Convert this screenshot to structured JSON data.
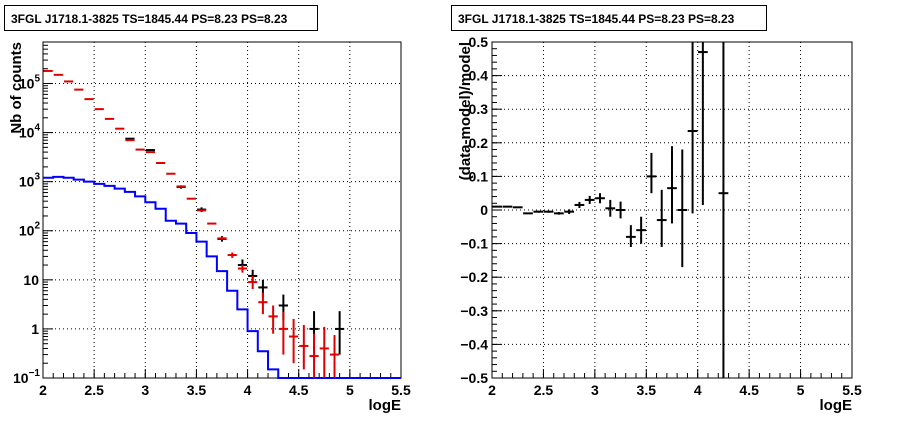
{
  "chart_data": [
    {
      "type": "histogram",
      "title": "3FGL J1718.1-3825 TS=1845.44 PS=8.23 PS=8.23",
      "xlabel": "logE",
      "ylabel": "Nb of counts",
      "xlim": [
        2,
        5.5
      ],
      "ylim": [
        0.1,
        700000
      ],
      "yscale": "log",
      "grid": true,
      "xticks": [
        "2",
        "2.5",
        "3",
        "3.5",
        "4",
        "4.5",
        "5",
        "5.5"
      ],
      "yticks": [
        {
          "v": 0.1,
          "t": "10",
          "exp": "−1"
        },
        {
          "v": 1,
          "t": "1",
          "exp": ""
        },
        {
          "v": 10,
          "t": "10",
          "exp": ""
        },
        {
          "v": 100,
          "t": "10",
          "exp": "2"
        },
        {
          "v": 1000,
          "t": "10",
          "exp": "3"
        },
        {
          "v": 10000,
          "t": "10",
          "exp": "4"
        },
        {
          "v": 100000,
          "t": "10",
          "exp": "5"
        }
      ],
      "bin_edges": [
        2.0,
        2.1,
        2.2,
        2.3,
        2.4,
        2.5,
        2.6,
        2.7,
        2.8,
        2.9,
        3.0,
        3.1,
        3.2,
        3.3,
        3.4,
        3.5,
        3.6,
        3.7,
        3.8,
        3.9,
        4.0,
        4.1,
        4.2,
        4.3,
        4.4,
        4.5,
        4.6,
        4.7,
        4.8,
        4.9,
        5.0,
        5.1,
        5.2,
        5.3,
        5.4,
        5.5
      ],
      "series": [
        {
          "name": "model",
          "color": "#0000ff",
          "style": "step",
          "values": [
            1200,
            1250,
            1200,
            1100,
            1000,
            900,
            820,
            720,
            620,
            500,
            380,
            280,
            160,
            140,
            90,
            60,
            30,
            15,
            6,
            2.5,
            0.9,
            0.35,
            0.15,
            0.1,
            0.1,
            0.1,
            0.1,
            0.1,
            0.1,
            0.1,
            0.1,
            0.1,
            0.1,
            0.1,
            0.1
          ]
        },
        {
          "name": "data",
          "color": "#000000",
          "style": "points",
          "points": [
            {
              "x": 2.85,
              "y": 7500,
              "lo": 7300,
              "hi": 7700
            },
            {
              "x": 3.05,
              "y": 4400,
              "lo": 4250,
              "hi": 4550
            },
            {
              "x": 3.35,
              "y": 780,
              "lo": 720,
              "hi": 840
            },
            {
              "x": 3.55,
              "y": 270,
              "lo": 240,
              "hi": 300
            },
            {
              "x": 3.75,
              "y": 68,
              "lo": 60,
              "hi": 78
            },
            {
              "x": 3.95,
              "y": 20,
              "lo": 15,
              "hi": 26
            },
            {
              "x": 4.05,
              "y": 12,
              "lo": 8.5,
              "hi": 16
            },
            {
              "x": 4.15,
              "y": 7,
              "lo": 4.5,
              "hi": 10
            },
            {
              "x": 4.35,
              "y": 3,
              "lo": 1.5,
              "hi": 5
            },
            {
              "x": 4.65,
              "y": 1,
              "lo": 0.3,
              "hi": 2.3
            },
            {
              "x": 4.9,
              "y": 1,
              "lo": 0.3,
              "hi": 2.3
            }
          ]
        },
        {
          "name": "model-counts",
          "color": "#e00000",
          "style": "points",
          "points": [
            {
              "x": 2.05,
              "y": 180000,
              "lo": 180000,
              "hi": 180000
            },
            {
              "x": 2.15,
              "y": 150000,
              "lo": 150000,
              "hi": 150000
            },
            {
              "x": 2.25,
              "y": 110000,
              "lo": 110000,
              "hi": 110000
            },
            {
              "x": 2.35,
              "y": 75000,
              "lo": 75000,
              "hi": 75000
            },
            {
              "x": 2.45,
              "y": 48000,
              "lo": 48000,
              "hi": 48000
            },
            {
              "x": 2.55,
              "y": 30000,
              "lo": 30000,
              "hi": 30000
            },
            {
              "x": 2.65,
              "y": 19000,
              "lo": 19000,
              "hi": 19000
            },
            {
              "x": 2.75,
              "y": 12000,
              "lo": 12000,
              "hi": 12000
            },
            {
              "x": 2.85,
              "y": 7000,
              "lo": 7000,
              "hi": 7000
            },
            {
              "x": 2.95,
              "y": 4500,
              "lo": 4500,
              "hi": 4500
            },
            {
              "x": 3.05,
              "y": 4000,
              "lo": 4000,
              "hi": 4000
            },
            {
              "x": 3.15,
              "y": 2400,
              "lo": 2400,
              "hi": 2400
            },
            {
              "x": 3.25,
              "y": 1450,
              "lo": 1450,
              "hi": 1450
            },
            {
              "x": 3.35,
              "y": 800,
              "lo": 800,
              "hi": 800
            },
            {
              "x": 3.45,
              "y": 450,
              "lo": 450,
              "hi": 450
            },
            {
              "x": 3.55,
              "y": 260,
              "lo": 260,
              "hi": 260
            },
            {
              "x": 3.65,
              "y": 140,
              "lo": 140,
              "hi": 140
            },
            {
              "x": 3.75,
              "y": 70,
              "lo": 65,
              "hi": 76
            },
            {
              "x": 3.85,
              "y": 32,
              "lo": 28,
              "hi": 36
            },
            {
              "x": 3.95,
              "y": 17,
              "lo": 14,
              "hi": 20
            },
            {
              "x": 4.05,
              "y": 9,
              "lo": 6.5,
              "hi": 12
            },
            {
              "x": 4.15,
              "y": 3.5,
              "lo": 2,
              "hi": 5.5
            },
            {
              "x": 4.25,
              "y": 1.8,
              "lo": 0.8,
              "hi": 3
            },
            {
              "x": 4.35,
              "y": 1,
              "lo": 0.3,
              "hi": 2.2
            },
            {
              "x": 4.45,
              "y": 0.7,
              "lo": 0.2,
              "hi": 1.6
            },
            {
              "x": 4.55,
              "y": 0.45,
              "lo": 0.15,
              "hi": 1.2
            },
            {
              "x": 4.65,
              "y": 0.28,
              "lo": 0.1,
              "hi": 0.8
            },
            {
              "x": 4.75,
              "y": 0.4,
              "lo": 0.1,
              "hi": 1.1
            },
            {
              "x": 4.85,
              "y": 0.3,
              "lo": 0.1,
              "hi": 0.75
            }
          ]
        }
      ]
    },
    {
      "type": "scatter",
      "title": "3FGL J1718.1-3825 TS=1845.44 PS=8.23 PS=8.23",
      "xlabel": "logE",
      "ylabel": "(data-model)/model",
      "xlim": [
        2,
        5.5
      ],
      "ylim": [
        -0.5,
        0.5
      ],
      "grid": true,
      "xticks": [
        "2",
        "2.5",
        "3",
        "3.5",
        "4",
        "4.5",
        "5",
        "5.5"
      ],
      "yticks": [
        "−0.5",
        "−0.4",
        "−0.3",
        "−0.2",
        "−0.1",
        "0",
        "0.1",
        "0.2",
        "0.3",
        "0.4",
        "0.5"
      ],
      "series": [
        {
          "name": "residuals",
          "color": "#000000",
          "points": [
            {
              "x": 2.05,
              "y": 0.01,
              "xw": 0.05,
              "lo": 0.008,
              "hi": 0.012
            },
            {
              "x": 2.15,
              "y": 0.01,
              "xw": 0.05,
              "lo": 0.008,
              "hi": 0.012
            },
            {
              "x": 2.25,
              "y": 0.008,
              "xw": 0.05,
              "lo": 0.006,
              "hi": 0.01
            },
            {
              "x": 2.35,
              "y": -0.01,
              "xw": 0.05,
              "lo": -0.012,
              "hi": -0.008
            },
            {
              "x": 2.45,
              "y": -0.005,
              "xw": 0.05,
              "lo": -0.008,
              "hi": -0.002
            },
            {
              "x": 2.55,
              "y": -0.005,
              "xw": 0.05,
              "lo": -0.008,
              "hi": -0.002
            },
            {
              "x": 2.65,
              "y": -0.01,
              "xw": 0.05,
              "lo": -0.014,
              "hi": -0.006
            },
            {
              "x": 2.75,
              "y": -0.005,
              "xw": 0.05,
              "lo": -0.012,
              "hi": 0.002
            },
            {
              "x": 2.85,
              "y": 0.015,
              "xw": 0.05,
              "lo": 0.006,
              "hi": 0.024
            },
            {
              "x": 2.95,
              "y": 0.03,
              "xw": 0.05,
              "lo": 0.018,
              "hi": 0.042
            },
            {
              "x": 3.05,
              "y": 0.035,
              "xw": 0.05,
              "lo": 0.02,
              "hi": 0.05
            },
            {
              "x": 3.15,
              "y": 0.005,
              "xw": 0.05,
              "lo": -0.02,
              "hi": 0.03
            },
            {
              "x": 3.25,
              "y": 0.0,
              "xw": 0.05,
              "lo": -0.025,
              "hi": 0.025
            },
            {
              "x": 3.35,
              "y": -0.08,
              "xw": 0.05,
              "lo": -0.11,
              "hi": -0.045
            },
            {
              "x": 3.45,
              "y": -0.06,
              "xw": 0.05,
              "lo": -0.1,
              "hi": -0.02
            },
            {
              "x": 3.55,
              "y": 0.1,
              "xw": 0.05,
              "lo": 0.05,
              "hi": 0.17
            },
            {
              "x": 3.65,
              "y": -0.03,
              "xw": 0.05,
              "lo": -0.11,
              "hi": 0.06
            },
            {
              "x": 3.75,
              "y": 0.065,
              "xw": 0.05,
              "lo": -0.04,
              "hi": 0.19
            },
            {
              "x": 3.85,
              "y": 0.0,
              "xw": 0.05,
              "lo": -0.17,
              "hi": 0.18
            },
            {
              "x": 3.95,
              "y": 0.235,
              "xw": 0.05,
              "lo": -0.01,
              "hi": 0.5
            },
            {
              "x": 4.05,
              "y": 0.47,
              "xw": 0.05,
              "lo": 0.015,
              "hi": 0.5
            },
            {
              "x": 4.25,
              "y": 0.05,
              "xw": 0.05,
              "lo": -0.5,
              "hi": 0.5
            }
          ]
        }
      ]
    }
  ]
}
